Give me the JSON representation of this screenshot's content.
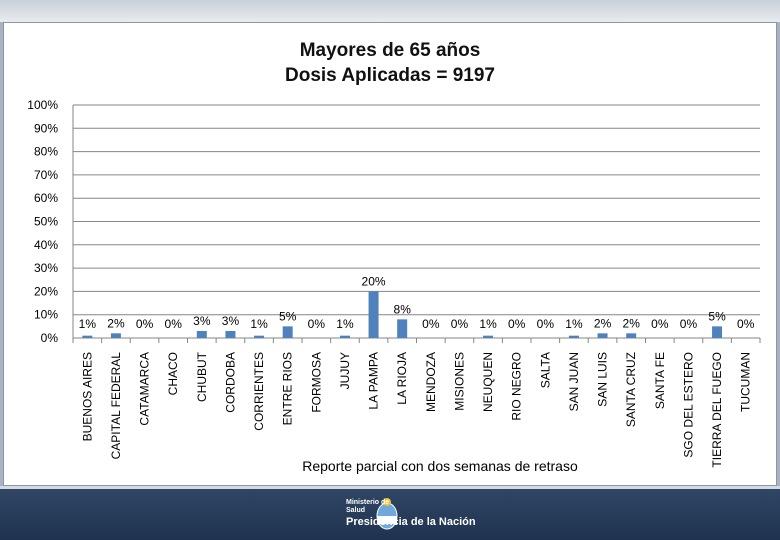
{
  "footer": {
    "ministry": "Ministerio de",
    "area": "Salud",
    "presidency": "Presidencia de la Nación"
  },
  "chart_data": {
    "type": "bar",
    "title": "Mayores de 65 años",
    "subtitle": "Dosis Aplicadas = 9197",
    "xlabel": "",
    "ylabel": "",
    "ylim": [
      0,
      100
    ],
    "yticks": [
      "0%",
      "10%",
      "20%",
      "30%",
      "40%",
      "50%",
      "60%",
      "70%",
      "80%",
      "90%",
      "100%"
    ],
    "grid": true,
    "bar_color": "#4f81bd",
    "note": "Reporte parcial con dos semanas de retraso",
    "categories": [
      "BUENOS AIRES",
      "CAPITAL FEDERAL",
      "CATAMARCA",
      "CHACO",
      "CHUBUT",
      "CORDOBA",
      "CORRIENTES",
      "ENTRE RIOS",
      "FORMOSA",
      "JUJUY",
      "LA PAMPA",
      "LA RIOJA",
      "MENDOZA",
      "MISIONES",
      "NEUQUEN",
      "RIO NEGRO",
      "SALTA",
      "SAN JUAN",
      "SAN LUIS",
      "SANTA CRUZ",
      "SANTA FE",
      "SGO DEL ESTERO",
      "TIERRA DEL FUEGO",
      "TUCUMAN"
    ],
    "values": [
      1,
      2,
      0,
      0,
      3,
      3,
      1,
      5,
      0,
      1,
      20,
      8,
      0,
      0,
      1,
      0,
      0,
      1,
      2,
      2,
      0,
      0,
      5,
      0
    ],
    "labels": [
      "1%",
      "2%",
      "0%",
      "0%",
      "3%",
      "3%",
      "1%",
      "5%",
      "0%",
      "1%",
      "20%",
      "8%",
      "0%",
      "0%",
      "1%",
      "0%",
      "0%",
      "1%",
      "2%",
      "2%",
      "0%",
      "0%",
      "5%",
      "0%"
    ]
  }
}
